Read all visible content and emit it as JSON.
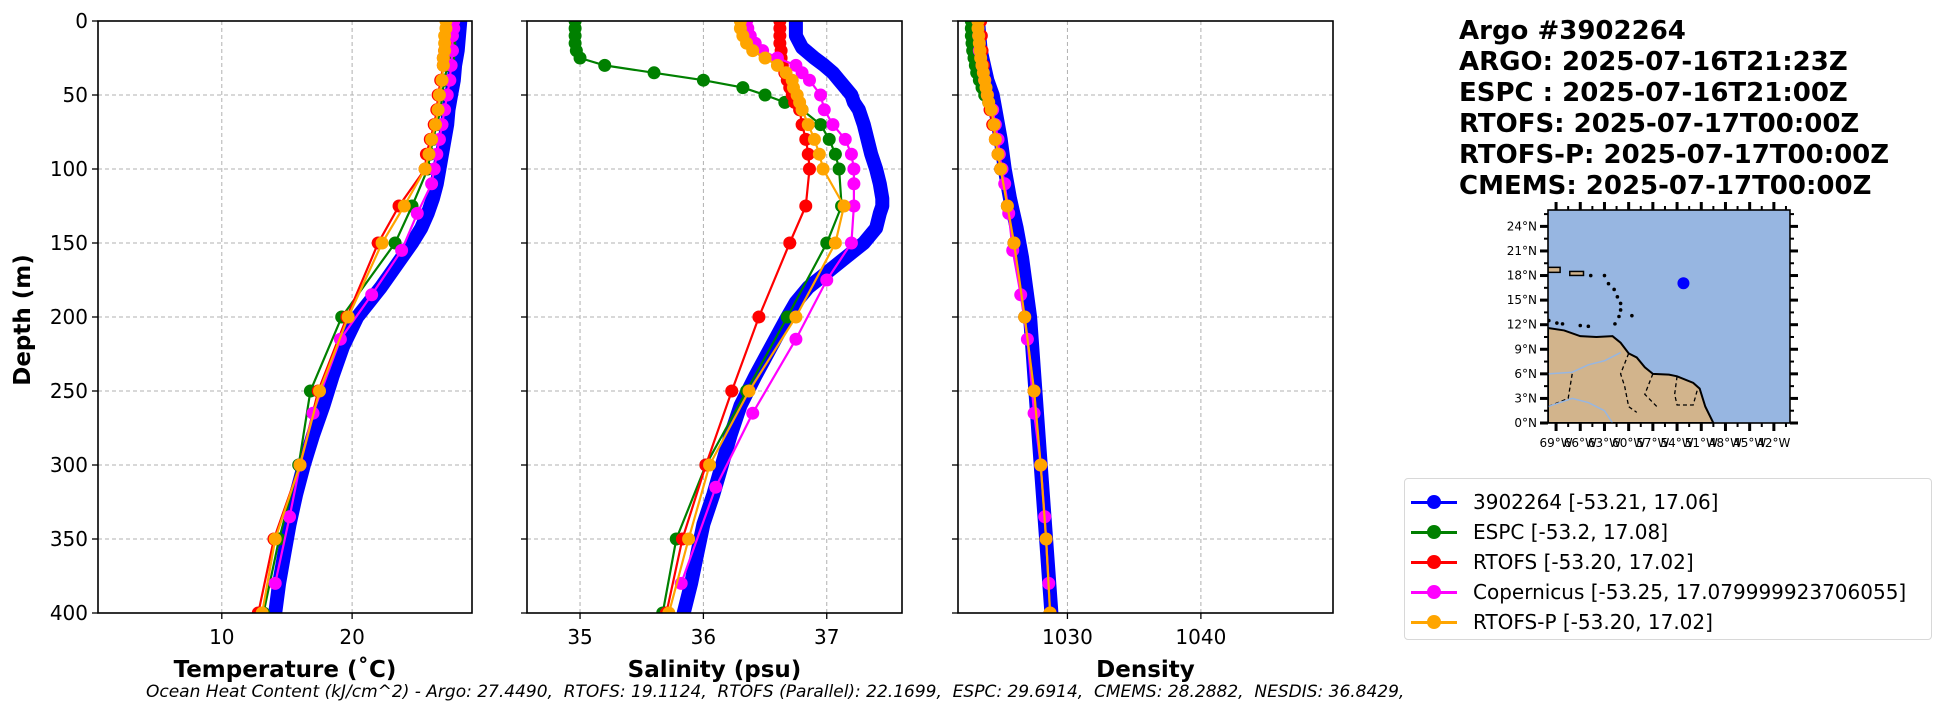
{
  "info": {
    "title": "Argo #3902264",
    "lines": [
      "ARGO: 2025-07-16T21:23Z",
      "ESPC : 2025-07-16T21:00Z",
      "RTOFS: 2025-07-17T00:00Z",
      "RTOFS-P: 2025-07-17T00:00Z",
      "CMEMS: 2025-07-17T00:00Z"
    ]
  },
  "legend": [
    {
      "label": "3902264 [-53.21, 17.06]",
      "color": "#0000ff"
    },
    {
      "label": "ESPC [-53.2, 17.08]",
      "color": "#008000"
    },
    {
      "label": "RTOFS [-53.20, 17.02]",
      "color": "#ff0000"
    },
    {
      "label": "Copernicus [-53.25, 17.079999923706055]",
      "color": "#ff00ff"
    },
    {
      "label": "RTOFS-P [-53.20, 17.02]",
      "color": "#ffa500"
    }
  ],
  "caption": "Ocean Heat Content (kJ/cm^2) - Argo: 27.4490,  RTOFS: 19.1124,  RTOFS (Parallel): 22.1699,  ESPC: 29.6914,  CMEMS: 28.2882,  NESDIS: 36.8429,",
  "map": {
    "lat_ticks": [
      "0°N",
      "3°N",
      "6°N",
      "9°N",
      "12°N",
      "15°N",
      "18°N",
      "21°N",
      "24°N"
    ],
    "lon_ticks": [
      "69°W",
      "66°W",
      "63°W",
      "60°W",
      "57°W",
      "54°W",
      "51°W",
      "48°W",
      "45°W",
      "42°W"
    ],
    "float_position": {
      "lon": -53.21,
      "lat": 17.06
    },
    "extent": {
      "lon": [
        -70,
        -40
      ],
      "lat": [
        0,
        26
      ]
    },
    "ocean_color": "#97b6e1",
    "land_color": "#d2b48c",
    "marker_color": "#0000ff"
  },
  "chart_data": [
    {
      "type": "line",
      "name": "temperature-profile",
      "xlabel": "Temperature (˚C)",
      "ylabel": "Depth (m)",
      "xlim": [
        0.5,
        29.2
      ],
      "ylim": [
        400,
        0
      ],
      "xticks": [
        10,
        20
      ],
      "yticks": [
        0,
        50,
        100,
        150,
        200,
        250,
        300,
        350,
        400
      ],
      "grid": true,
      "series": [
        {
          "name": "3902264",
          "color": "#0000ff",
          "thick": true,
          "depth": [
            0,
            10,
            20,
            30,
            40,
            50,
            60,
            70,
            80,
            90,
            100,
            110,
            120,
            130,
            140,
            150,
            160,
            170,
            180,
            190,
            200,
            220,
            240,
            260,
            280,
            300,
            320,
            340,
            360,
            380,
            400
          ],
          "values": [
            28.3,
            28.2,
            28.1,
            27.9,
            27.8,
            27.6,
            27.4,
            27.3,
            27.1,
            26.9,
            26.7,
            26.5,
            26.2,
            25.8,
            25.3,
            24.6,
            23.8,
            23.0,
            22.2,
            21.3,
            20.4,
            19.3,
            18.5,
            17.8,
            17.0,
            16.3,
            15.7,
            15.2,
            14.8,
            14.4,
            14.1
          ]
        },
        {
          "name": "ESPC",
          "color": "#008000",
          "depth": [
            0,
            5,
            10,
            15,
            20,
            25,
            30,
            40,
            50,
            60,
            70,
            80,
            90,
            100,
            125,
            150,
            200,
            250,
            300,
            350,
            400
          ],
          "values": [
            27.6,
            27.6,
            27.5,
            27.5,
            27.5,
            27.4,
            27.3,
            27.1,
            26.9,
            26.8,
            26.5,
            26.2,
            26.0,
            25.8,
            24.6,
            23.3,
            19.2,
            16.8,
            15.9,
            14.4,
            13.2
          ]
        },
        {
          "name": "RTOFS",
          "color": "#ff0000",
          "depth": [
            0,
            5,
            10,
            15,
            20,
            25,
            30,
            40,
            50,
            60,
            70,
            80,
            90,
            100,
            125,
            150,
            200,
            250,
            300,
            350,
            400
          ],
          "values": [
            27.3,
            27.3,
            27.2,
            27.2,
            27.1,
            27.0,
            27.0,
            26.8,
            26.6,
            26.5,
            26.3,
            26.0,
            25.7,
            25.6,
            23.6,
            22.0,
            19.6,
            17.4,
            16.0,
            14.0,
            12.8
          ]
        },
        {
          "name": "Copernicus",
          "color": "#ff00ff",
          "depth": [
            0,
            5,
            10,
            20,
            30,
            40,
            50,
            60,
            70,
            80,
            90,
            100,
            110,
            130,
            155,
            185,
            215,
            265,
            300,
            335,
            380
          ],
          "values": [
            27.8,
            27.8,
            27.7,
            27.7,
            27.6,
            27.5,
            27.3,
            27.1,
            26.9,
            26.7,
            26.5,
            26.3,
            26.1,
            25.0,
            23.8,
            21.5,
            19.1,
            17.0,
            16.0,
            15.2,
            14.1
          ]
        },
        {
          "name": "RTOFS-P",
          "color": "#ffa500",
          "depth": [
            0,
            5,
            10,
            15,
            20,
            25,
            30,
            40,
            50,
            60,
            70,
            80,
            90,
            100,
            125,
            150,
            200,
            250,
            300,
            350,
            400
          ],
          "values": [
            27.2,
            27.2,
            27.1,
            27.1,
            27.1,
            27.0,
            27.0,
            26.9,
            26.7,
            26.6,
            26.4,
            26.1,
            25.9,
            25.6,
            24.0,
            22.3,
            19.7,
            17.5,
            16.0,
            14.1,
            13.1
          ]
        }
      ]
    },
    {
      "type": "line",
      "name": "salinity-profile",
      "xlabel": "Salinity (psu)",
      "ylabel": "",
      "xlim": [
        34.57,
        37.61
      ],
      "ylim": [
        400,
        0
      ],
      "xticks": [
        35,
        36,
        37
      ],
      "yticks": [
        0,
        50,
        100,
        150,
        200,
        250,
        300,
        350,
        400
      ],
      "grid": true,
      "series": [
        {
          "name": "3902264",
          "color": "#0000ff",
          "thick": true,
          "depth": [
            0,
            10,
            18,
            25,
            30,
            35,
            40,
            45,
            50,
            55,
            60,
            70,
            80,
            90,
            100,
            110,
            120,
            125,
            130,
            140,
            150,
            160,
            170,
            180,
            190,
            200,
            220,
            240,
            260,
            280,
            300,
            320,
            340,
            360,
            380,
            400
          ],
          "values": [
            36.75,
            36.75,
            36.8,
            36.9,
            36.98,
            37.05,
            37.1,
            37.15,
            37.2,
            37.22,
            37.26,
            37.3,
            37.33,
            37.36,
            37.4,
            37.43,
            37.45,
            37.45,
            37.43,
            37.4,
            37.3,
            37.15,
            37.0,
            36.85,
            36.75,
            36.68,
            36.55,
            36.42,
            36.3,
            36.22,
            36.15,
            36.08,
            36.0,
            35.95,
            35.9,
            35.84
          ]
        },
        {
          "name": "ESPC",
          "color": "#008000",
          "depth": [
            0,
            5,
            10,
            15,
            20,
            25,
            30,
            35,
            40,
            45,
            50,
            55,
            60,
            70,
            80,
            90,
            100,
            125,
            150,
            200,
            250,
            300,
            350,
            400
          ],
          "values": [
            34.96,
            34.96,
            34.96,
            34.96,
            34.97,
            35.0,
            35.2,
            35.6,
            36.0,
            36.32,
            36.5,
            36.66,
            36.8,
            36.95,
            37.02,
            37.07,
            37.1,
            37.12,
            37.0,
            36.68,
            36.35,
            36.02,
            35.78,
            35.67
          ]
        },
        {
          "name": "RTOFS",
          "color": "#ff0000",
          "depth": [
            0,
            5,
            10,
            15,
            20,
            25,
            30,
            35,
            40,
            45,
            50,
            55,
            60,
            70,
            80,
            90,
            100,
            125,
            150,
            200,
            250,
            300,
            350,
            400
          ],
          "values": [
            36.62,
            36.62,
            36.62,
            36.62,
            36.63,
            36.63,
            36.64,
            36.66,
            36.68,
            36.7,
            36.72,
            36.74,
            36.78,
            36.8,
            36.83,
            36.85,
            36.86,
            36.83,
            36.7,
            36.45,
            36.23,
            36.02,
            35.83,
            35.7
          ]
        },
        {
          "name": "Copernicus",
          "color": "#ff00ff",
          "depth": [
            0,
            5,
            10,
            15,
            20,
            25,
            30,
            35,
            40,
            50,
            60,
            70,
            80,
            90,
            100,
            110,
            125,
            150,
            175,
            215,
            265,
            315,
            380
          ],
          "values": [
            36.35,
            36.36,
            36.38,
            36.42,
            36.48,
            36.6,
            36.75,
            36.8,
            36.86,
            36.95,
            36.98,
            37.05,
            37.15,
            37.2,
            37.22,
            37.22,
            37.22,
            37.2,
            37.0,
            36.75,
            36.4,
            36.1,
            35.82
          ]
        },
        {
          "name": "RTOFS-P",
          "color": "#ffa500",
          "depth": [
            0,
            5,
            10,
            15,
            20,
            25,
            30,
            35,
            40,
            45,
            50,
            55,
            60,
            70,
            80,
            90,
            100,
            125,
            150,
            200,
            250,
            300,
            350,
            400
          ],
          "values": [
            36.3,
            36.3,
            36.32,
            36.35,
            36.4,
            36.5,
            36.6,
            36.67,
            36.72,
            36.73,
            36.76,
            36.78,
            36.8,
            36.85,
            36.9,
            36.94,
            36.97,
            37.14,
            37.07,
            36.75,
            36.37,
            36.05,
            35.88,
            35.72
          ]
        }
      ]
    },
    {
      "type": "line",
      "name": "density-profile",
      "xlabel": "Density",
      "ylabel": "",
      "xlim": [
        1021.8,
        1049.9
      ],
      "ylim": [
        400,
        0
      ],
      "xticks": [
        1030,
        1040
      ],
      "yticks": [
        0,
        50,
        100,
        150,
        200,
        250,
        300,
        350,
        400
      ],
      "grid": true,
      "series": [
        {
          "name": "3902264",
          "color": "#0000ff",
          "thick": true,
          "depth": [
            0,
            20,
            40,
            50,
            60,
            80,
            100,
            120,
            140,
            160,
            180,
            200,
            250,
            300,
            350,
            400
          ],
          "values": [
            1023.3,
            1023.5,
            1024.0,
            1024.4,
            1024.6,
            1025.0,
            1025.3,
            1025.7,
            1026.2,
            1026.6,
            1026.9,
            1027.2,
            1027.6,
            1028.0,
            1028.4,
            1028.8
          ]
        },
        {
          "name": "ESPC",
          "color": "#008000",
          "depth": [
            0,
            5,
            10,
            15,
            20,
            25,
            30,
            35,
            40,
            45,
            50,
            55,
            60,
            70,
            80,
            90,
            100,
            125,
            150,
            200,
            250,
            300,
            350,
            400
          ],
          "values": [
            1022.8,
            1022.8,
            1022.8,
            1022.85,
            1022.9,
            1023.0,
            1023.1,
            1023.2,
            1023.4,
            1023.6,
            1023.8,
            1024.1,
            1024.3,
            1024.5,
            1024.7,
            1024.9,
            1025.0,
            1025.5,
            1026.0,
            1026.8,
            1027.5,
            1028.0,
            1028.4,
            1028.7
          ]
        },
        {
          "name": "RTOFS",
          "color": "#ff0000",
          "depth": [
            0,
            10,
            20,
            30,
            40,
            50,
            60,
            70,
            80,
            90,
            100,
            125,
            150,
            200,
            250,
            300,
            350,
            400
          ],
          "values": [
            1023.5,
            1023.55,
            1023.6,
            1023.7,
            1023.8,
            1024.0,
            1024.2,
            1024.4,
            1024.6,
            1024.8,
            1025.0,
            1025.5,
            1026.0,
            1026.8,
            1027.5,
            1028.0,
            1028.4,
            1028.7
          ]
        },
        {
          "name": "Copernicus",
          "color": "#ff00ff",
          "depth": [
            0,
            10,
            20,
            30,
            40,
            50,
            60,
            70,
            80,
            90,
            100,
            110,
            130,
            155,
            185,
            215,
            265,
            300,
            335,
            380
          ],
          "values": [
            1023.3,
            1023.35,
            1023.4,
            1023.6,
            1023.8,
            1024.0,
            1024.4,
            1024.6,
            1024.8,
            1024.9,
            1025.1,
            1025.3,
            1025.6,
            1025.9,
            1026.5,
            1027.0,
            1027.5,
            1028.0,
            1028.3,
            1028.6
          ]
        },
        {
          "name": "RTOFS-P",
          "color": "#ffa500",
          "depth": [
            0,
            5,
            10,
            15,
            20,
            25,
            30,
            35,
            40,
            45,
            50,
            55,
            60,
            70,
            80,
            90,
            100,
            125,
            150,
            200,
            250,
            300,
            350,
            400
          ],
          "values": [
            1023.3,
            1023.3,
            1023.35,
            1023.4,
            1023.45,
            1023.5,
            1023.6,
            1023.7,
            1023.8,
            1023.9,
            1024.0,
            1024.1,
            1024.3,
            1024.5,
            1024.6,
            1024.8,
            1025.0,
            1025.5,
            1026.0,
            1026.8,
            1027.5,
            1028.0,
            1028.4,
            1028.7
          ]
        }
      ]
    }
  ],
  "depth_axis": {
    "label": "Depth (m)"
  }
}
